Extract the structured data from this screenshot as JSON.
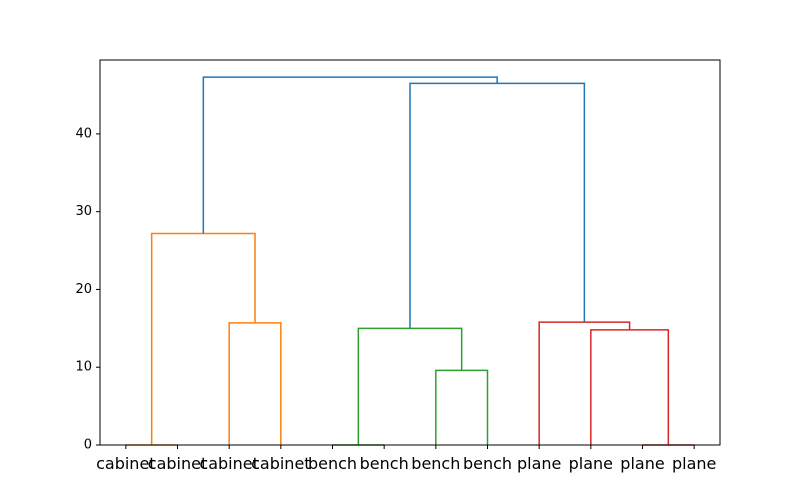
{
  "chart_data": {
    "type": "dendrogram",
    "title": "",
    "xlabel": "",
    "ylabel": "",
    "ylim": [
      0,
      49.5
    ],
    "yticks": [
      0,
      10,
      20,
      30,
      40
    ],
    "grid": false,
    "legend": "none",
    "leaves": [
      "cabinet",
      "cabinet",
      "cabinet",
      "cabinet",
      "bench",
      "bench",
      "bench",
      "bench",
      "plane",
      "plane",
      "plane",
      "plane"
    ],
    "links": [
      {
        "left_x": 0,
        "right_x": 1,
        "height": 0.0,
        "left_child_height": 0,
        "right_child_height": 0,
        "color": "#ff7f0e"
      },
      {
        "left_x": 2,
        "right_x": 3,
        "height": 15.7,
        "left_child_height": 0,
        "right_child_height": 0,
        "color": "#ff7f0e"
      },
      {
        "left_x": 0.5,
        "right_x": 2.5,
        "height": 27.2,
        "left_child_height": 0.0,
        "right_child_height": 15.7,
        "color": "#ff7f0e"
      },
      {
        "left_x": 4,
        "right_x": 5,
        "height": 0.0,
        "left_child_height": 0,
        "right_child_height": 0,
        "color": "#2ca02c"
      },
      {
        "left_x": 6,
        "right_x": 7,
        "height": 9.6,
        "left_child_height": 0,
        "right_child_height": 0,
        "color": "#2ca02c"
      },
      {
        "left_x": 4.5,
        "right_x": 6.5,
        "height": 15.0,
        "left_child_height": 0.0,
        "right_child_height": 9.6,
        "color": "#2ca02c"
      },
      {
        "left_x": 10,
        "right_x": 11,
        "height": 0.0,
        "left_child_height": 0,
        "right_child_height": 0,
        "color": "#d62728"
      },
      {
        "left_x": 9,
        "right_x": 10.5,
        "height": 14.8,
        "left_child_height": 0,
        "right_child_height": 0.0,
        "color": "#d62728"
      },
      {
        "left_x": 8,
        "right_x": 9.75,
        "height": 15.8,
        "left_child_height": 0,
        "right_child_height": 14.8,
        "color": "#d62728"
      },
      {
        "left_x": 5.5,
        "right_x": 8.875,
        "height": 46.5,
        "left_child_height": 15.0,
        "right_child_height": 15.8,
        "color": "#1f77b4"
      },
      {
        "left_x": 1.5,
        "right_x": 7.1875,
        "height": 47.3,
        "left_child_height": 27.2,
        "right_child_height": 46.5,
        "color": "#1f77b4"
      }
    ]
  }
}
